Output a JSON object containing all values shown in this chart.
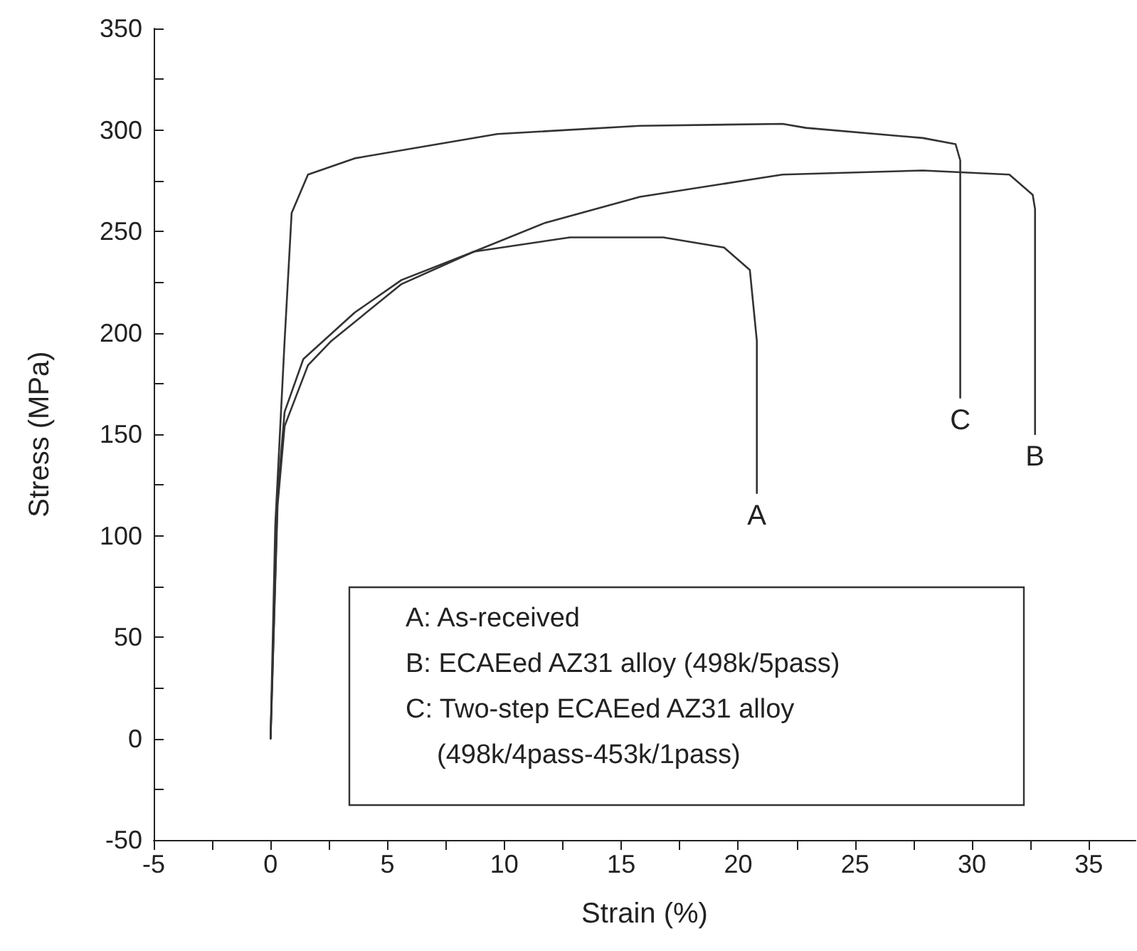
{
  "chart_data": {
    "type": "line",
    "xlabel": "Strain (%)",
    "ylabel": "Stress (MPa)",
    "xlim": [
      -5,
      37
    ],
    "ylim": [
      -50,
      350
    ],
    "xticks": [
      -5,
      {
        "value": -2.5,
        "label": null
      },
      0,
      {
        "value": 2.5,
        "label": null
      },
      5,
      {
        "value": 7.5,
        "label": null
      },
      10,
      {
        "value": 12.5,
        "label": null
      },
      15,
      {
        "value": 17.5,
        "label": null
      },
      20,
      {
        "value": 22.5,
        "label": null
      },
      25,
      {
        "value": 27.5,
        "label": null
      },
      30,
      {
        "value": 32.5,
        "label": null
      },
      35
    ],
    "yticks": [
      -50,
      {
        "value": -25,
        "label": null
      },
      0,
      {
        "value": 25,
        "label": null
      },
      50,
      {
        "value": 75,
        "label": null
      },
      100,
      {
        "value": 125,
        "label": null
      },
      150,
      {
        "value": 175,
        "label": null
      },
      200,
      {
        "value": 225,
        "label": null
      },
      250,
      {
        "value": 275,
        "label": null
      },
      300,
      {
        "value": 325,
        "label": null
      },
      350
    ],
    "grid": false,
    "series": [
      {
        "color": "#333333",
        "x": [
          0,
          0.3,
          0.6,
          1.4,
          3.6,
          5.6,
          8.7,
          12.8,
          16.8,
          19.4,
          20.5,
          20.8,
          20.8
        ],
        "values": [
          0,
          120,
          161,
          187,
          210,
          226,
          240,
          247,
          247,
          242,
          231,
          196,
          121
        ]
      },
      {
        "color": "#333333",
        "x": [
          0,
          0.3,
          0.6,
          1.6,
          2.6,
          5.6,
          8.7,
          11.7,
          15.8,
          21.9,
          27.9,
          31.6,
          32.6,
          32.7,
          32.7
        ],
        "values": [
          0,
          115,
          154,
          184,
          196,
          224,
          240,
          254,
          267,
          278,
          280,
          278,
          268,
          261,
          150
        ]
      },
      {
        "color": "#333333",
        "x": [
          0,
          0.2,
          0.6,
          0.9,
          1.6,
          3.6,
          9.7,
          15.8,
          21.9,
          22.9,
          27.9,
          29.3,
          29.5,
          29.5
        ],
        "values": [
          0,
          105,
          196,
          259,
          278,
          286,
          298,
          302,
          303,
          301,
          296,
          293,
          285,
          168
        ]
      }
    ],
    "annotations": [
      "A: As-received",
      "B: ECAEed AZ31 alloy (498k/5pass)",
      "C: Two-step ECAEed AZ31 alloy",
      "(498k/4pass-453k/1pass)",
      {
        "text": "A",
        "x": 20.8,
        "y": 121
      },
      {
        "text": "B",
        "x": 32.7,
        "y": 150
      },
      {
        "text": "C",
        "x": 29.5,
        "y": 168
      }
    ]
  }
}
